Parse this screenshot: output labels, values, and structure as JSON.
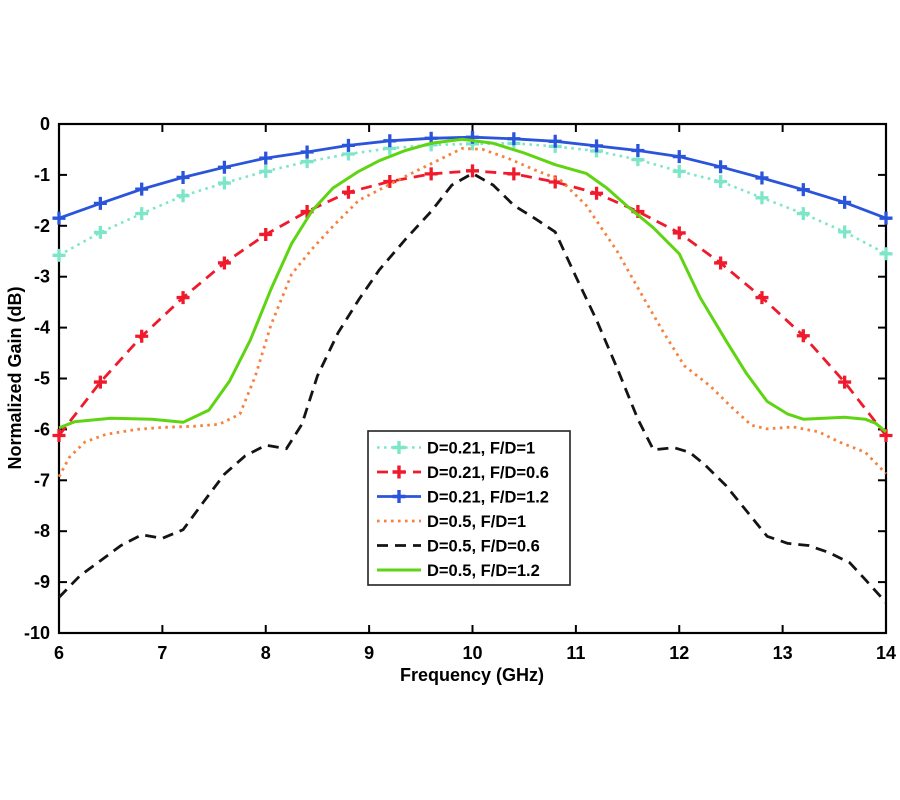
{
  "figure": {
    "background": "#ffffff"
  },
  "chart_data": {
    "type": "line",
    "title": "",
    "xlabel": "Frequency (GHz)",
    "ylabel": "Normalized Gain (dB)",
    "xlim": [
      6,
      14
    ],
    "ylim": [
      -10,
      0
    ],
    "xticks": [
      6,
      7,
      8,
      9,
      10,
      11,
      12,
      13,
      14
    ],
    "xtick_labels": [
      "6",
      "7",
      "8",
      "9",
      "10",
      "11",
      "12",
      "13",
      "14"
    ],
    "yticks": [
      0,
      -1,
      -2,
      -3,
      -4,
      -5,
      -6,
      -7,
      -8,
      -9,
      -10
    ],
    "ytick_labels": [
      "0",
      "-1",
      "-2",
      "-3",
      "-4",
      "-5",
      "-6",
      "-7",
      "-8",
      "-9",
      "-10"
    ],
    "grid": false,
    "axis_color": "#000000",
    "legend_position": "inside-bottom-center",
    "series": [
      {
        "name": "D=0.21, F/D=1",
        "color": "#7EE6C8",
        "style": "dotted",
        "marker": "plus",
        "linewidth": 2.6,
        "points": [
          [
            6.0,
            -2.58
          ],
          [
            6.4,
            -2.13
          ],
          [
            6.8,
            -1.76
          ],
          [
            7.2,
            -1.41
          ],
          [
            7.6,
            -1.16
          ],
          [
            8.0,
            -0.93
          ],
          [
            8.4,
            -0.74
          ],
          [
            8.8,
            -0.59
          ],
          [
            9.2,
            -0.48
          ],
          [
            9.6,
            -0.41
          ],
          [
            10.0,
            -0.39
          ],
          [
            10.4,
            -0.38
          ],
          [
            10.8,
            -0.44
          ],
          [
            11.2,
            -0.53
          ],
          [
            11.6,
            -0.7
          ],
          [
            12.0,
            -0.93
          ],
          [
            12.4,
            -1.13
          ],
          [
            12.8,
            -1.45
          ],
          [
            13.2,
            -1.76
          ],
          [
            13.6,
            -2.12
          ],
          [
            14.0,
            -2.55
          ]
        ]
      },
      {
        "name": "D=0.21, F/D=0.6",
        "color": "#EF1A2B",
        "style": "dashed",
        "marker": "plus",
        "linewidth": 2.8,
        "points": [
          [
            6.0,
            -6.12
          ],
          [
            6.4,
            -5.07
          ],
          [
            6.8,
            -4.17
          ],
          [
            7.2,
            -3.41
          ],
          [
            7.6,
            -2.73
          ],
          [
            8.0,
            -2.17
          ],
          [
            8.4,
            -1.72
          ],
          [
            8.8,
            -1.34
          ],
          [
            9.2,
            -1.13
          ],
          [
            9.6,
            -0.98
          ],
          [
            10.0,
            -0.92
          ],
          [
            10.4,
            -0.98
          ],
          [
            10.8,
            -1.14
          ],
          [
            11.2,
            -1.36
          ],
          [
            11.6,
            -1.72
          ],
          [
            12.0,
            -2.14
          ],
          [
            12.4,
            -2.73
          ],
          [
            12.8,
            -3.41
          ],
          [
            13.2,
            -4.16
          ],
          [
            13.6,
            -5.07
          ],
          [
            14.0,
            -6.12
          ]
        ]
      },
      {
        "name": "D=0.21, F/D=1.2",
        "color": "#2A55DB",
        "style": "solid",
        "marker": "plus",
        "linewidth": 2.8,
        "points": [
          [
            6.0,
            -1.85
          ],
          [
            6.4,
            -1.56
          ],
          [
            6.8,
            -1.28
          ],
          [
            7.2,
            -1.05
          ],
          [
            7.6,
            -0.85
          ],
          [
            8.0,
            -0.67
          ],
          [
            8.4,
            -0.55
          ],
          [
            8.8,
            -0.42
          ],
          [
            9.2,
            -0.33
          ],
          [
            9.6,
            -0.28
          ],
          [
            10.0,
            -0.26
          ],
          [
            10.4,
            -0.29
          ],
          [
            10.8,
            -0.34
          ],
          [
            11.2,
            -0.43
          ],
          [
            11.6,
            -0.52
          ],
          [
            12.0,
            -0.64
          ],
          [
            12.4,
            -0.84
          ],
          [
            12.8,
            -1.06
          ],
          [
            13.2,
            -1.29
          ],
          [
            13.6,
            -1.54
          ],
          [
            14.0,
            -1.85
          ]
        ]
      },
      {
        "name": "D=0.5, F/D=1",
        "color": "#F5823E",
        "style": "dotted",
        "marker": null,
        "linewidth": 2.8,
        "points": [
          [
            6.0,
            -6.93
          ],
          [
            6.1,
            -6.55
          ],
          [
            6.25,
            -6.25
          ],
          [
            6.45,
            -6.1
          ],
          [
            6.75,
            -6.0
          ],
          [
            7.0,
            -5.96
          ],
          [
            7.3,
            -5.94
          ],
          [
            7.55,
            -5.9
          ],
          [
            7.75,
            -5.7
          ],
          [
            7.9,
            -4.95
          ],
          [
            8.05,
            -3.95
          ],
          [
            8.25,
            -2.95
          ],
          [
            8.45,
            -2.45
          ],
          [
            8.65,
            -2.01
          ],
          [
            8.9,
            -1.5
          ],
          [
            9.1,
            -1.29
          ],
          [
            9.35,
            -1.03
          ],
          [
            9.6,
            -0.78
          ],
          [
            9.9,
            -0.48
          ],
          [
            10.1,
            -0.5
          ],
          [
            10.35,
            -0.68
          ],
          [
            10.6,
            -0.9
          ],
          [
            10.85,
            -1.1
          ],
          [
            11.1,
            -1.6
          ],
          [
            11.4,
            -2.5
          ],
          [
            11.65,
            -3.4
          ],
          [
            11.85,
            -4.1
          ],
          [
            12.05,
            -4.75
          ],
          [
            12.3,
            -5.15
          ],
          [
            12.5,
            -5.55
          ],
          [
            12.7,
            -5.92
          ],
          [
            12.85,
            -5.99
          ],
          [
            13.1,
            -5.95
          ],
          [
            13.35,
            -6.05
          ],
          [
            13.55,
            -6.25
          ],
          [
            13.8,
            -6.45
          ],
          [
            14.0,
            -6.87
          ]
        ]
      },
      {
        "name": "D=0.5, F/D=0.6",
        "color": "#141414",
        "style": "dashed",
        "marker": null,
        "linewidth": 2.8,
        "points": [
          [
            6.0,
            -9.3
          ],
          [
            6.2,
            -8.88
          ],
          [
            6.4,
            -8.58
          ],
          [
            6.6,
            -8.28
          ],
          [
            6.8,
            -8.07
          ],
          [
            7.0,
            -8.14
          ],
          [
            7.2,
            -7.97
          ],
          [
            7.4,
            -7.42
          ],
          [
            7.6,
            -6.88
          ],
          [
            7.8,
            -6.52
          ],
          [
            8.0,
            -6.31
          ],
          [
            8.2,
            -6.38
          ],
          [
            8.35,
            -5.9
          ],
          [
            8.5,
            -4.95
          ],
          [
            8.7,
            -4.1
          ],
          [
            8.9,
            -3.45
          ],
          [
            9.1,
            -2.86
          ],
          [
            9.35,
            -2.27
          ],
          [
            9.6,
            -1.72
          ],
          [
            9.8,
            -1.2
          ],
          [
            10.0,
            -0.97
          ],
          [
            10.2,
            -1.2
          ],
          [
            10.4,
            -1.6
          ],
          [
            10.6,
            -1.85
          ],
          [
            10.8,
            -2.12
          ],
          [
            11.0,
            -3.0
          ],
          [
            11.2,
            -3.85
          ],
          [
            11.4,
            -4.8
          ],
          [
            11.6,
            -5.8
          ],
          [
            11.75,
            -6.4
          ],
          [
            11.95,
            -6.36
          ],
          [
            12.1,
            -6.45
          ],
          [
            12.25,
            -6.7
          ],
          [
            12.45,
            -7.1
          ],
          [
            12.65,
            -7.6
          ],
          [
            12.85,
            -8.1
          ],
          [
            13.05,
            -8.24
          ],
          [
            13.25,
            -8.28
          ],
          [
            13.45,
            -8.42
          ],
          [
            13.65,
            -8.62
          ],
          [
            13.8,
            -8.95
          ],
          [
            14.0,
            -9.4
          ]
        ]
      },
      {
        "name": "D=0.5, F/D=1.2",
        "color": "#5FD413",
        "style": "solid",
        "marker": null,
        "linewidth": 3,
        "points": [
          [
            6.0,
            -5.97
          ],
          [
            6.15,
            -5.85
          ],
          [
            6.5,
            -5.78
          ],
          [
            6.9,
            -5.8
          ],
          [
            7.2,
            -5.86
          ],
          [
            7.45,
            -5.62
          ],
          [
            7.65,
            -5.05
          ],
          [
            7.85,
            -4.25
          ],
          [
            8.05,
            -3.25
          ],
          [
            8.25,
            -2.35
          ],
          [
            8.45,
            -1.7
          ],
          [
            8.65,
            -1.26
          ],
          [
            8.9,
            -0.93
          ],
          [
            9.1,
            -0.72
          ],
          [
            9.35,
            -0.52
          ],
          [
            9.6,
            -0.38
          ],
          [
            9.9,
            -0.3
          ],
          [
            10.2,
            -0.38
          ],
          [
            10.5,
            -0.57
          ],
          [
            10.8,
            -0.8
          ],
          [
            11.1,
            -0.97
          ],
          [
            11.3,
            -1.26
          ],
          [
            11.5,
            -1.62
          ],
          [
            11.75,
            -2.04
          ],
          [
            12.0,
            -2.55
          ],
          [
            12.2,
            -3.4
          ],
          [
            12.45,
            -4.25
          ],
          [
            12.65,
            -4.9
          ],
          [
            12.85,
            -5.45
          ],
          [
            13.05,
            -5.7
          ],
          [
            13.2,
            -5.8
          ],
          [
            13.4,
            -5.78
          ],
          [
            13.6,
            -5.76
          ],
          [
            13.8,
            -5.8
          ],
          [
            13.9,
            -5.88
          ],
          [
            14.0,
            -6.05
          ]
        ]
      }
    ]
  }
}
